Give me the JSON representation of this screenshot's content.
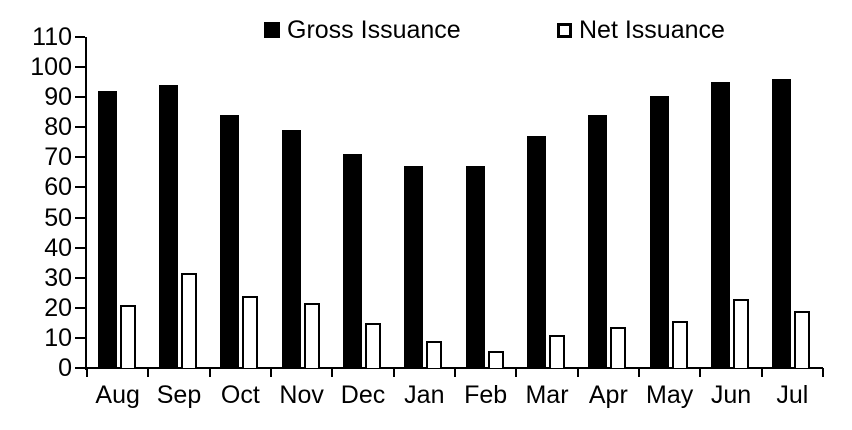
{
  "chart_data": {
    "type": "bar",
    "title": "",
    "xlabel": "",
    "ylabel": "",
    "categories": [
      "Aug",
      "Sep",
      "Oct",
      "Nov",
      "Dec",
      "Jan",
      "Feb",
      "Mar",
      "Apr",
      "May",
      "Jun",
      "Jul"
    ],
    "series": [
      {
        "name": "Gross Issuance",
        "marker": "filled-square",
        "fill": "#000000",
        "border": "#000000",
        "values": [
          92,
          94,
          84,
          79,
          71,
          67,
          67,
          77,
          84,
          90.5,
          95,
          96
        ]
      },
      {
        "name": "Net Issuance",
        "marker": "open-square",
        "fill": "#ffffff",
        "border": "#000000",
        "values": [
          21,
          31.5,
          24,
          21.5,
          15,
          9,
          5.5,
          11,
          13.5,
          15.5,
          23,
          19
        ]
      }
    ],
    "ylim": [
      0,
      110
    ],
    "yticks": [
      0,
      10,
      20,
      30,
      40,
      50,
      60,
      70,
      80,
      90,
      100,
      110
    ],
    "legend_position": "top",
    "grid": false,
    "background": "#ffffff",
    "axis_color": "#000000",
    "text_color": "#000000"
  }
}
